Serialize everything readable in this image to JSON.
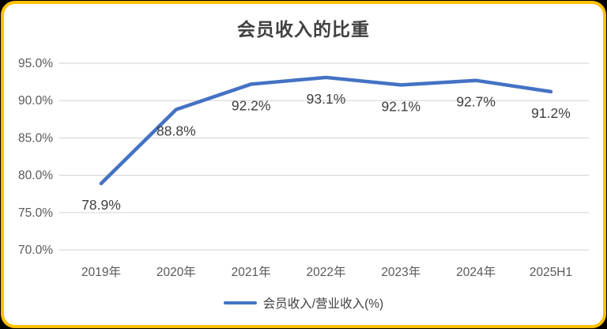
{
  "card": {
    "border_color": "#FFC000",
    "background": "#ffffff",
    "outer_background": "#000000"
  },
  "chart_data": {
    "type": "line",
    "title": "会员收入的比重",
    "categories": [
      "2019年",
      "2020年",
      "2021年",
      "2022年",
      "2023年",
      "2024年",
      "2025H1"
    ],
    "series": [
      {
        "name": "会员收入/营业收入(%)",
        "values": [
          78.9,
          88.8,
          92.2,
          93.1,
          92.1,
          92.7,
          91.2
        ],
        "color": "#4472C4"
      }
    ],
    "data_labels": [
      "78.9%",
      "88.8%",
      "92.2%",
      "93.1%",
      "92.1%",
      "92.7%",
      "91.2%"
    ],
    "ylim": [
      70,
      95
    ],
    "yticks": [
      {
        "value": 95,
        "label": "95.0%"
      },
      {
        "value": 90,
        "label": "90.0%"
      },
      {
        "value": 85,
        "label": "85.0%"
      },
      {
        "value": 80,
        "label": "80.0%"
      },
      {
        "value": 75,
        "label": "75.0%"
      },
      {
        "value": 70,
        "label": "70.0%"
      }
    ],
    "grid": true,
    "legend_position": "bottom",
    "legend": [
      {
        "label": "会员收入/营业收入(%)",
        "color": "#4472C4"
      }
    ],
    "colors": {
      "line": "#4472C4",
      "grid": "#D9D9D9",
      "tick_text": "#595959",
      "data_label_text": "#3d3d3d",
      "title_text": "#404040"
    }
  }
}
